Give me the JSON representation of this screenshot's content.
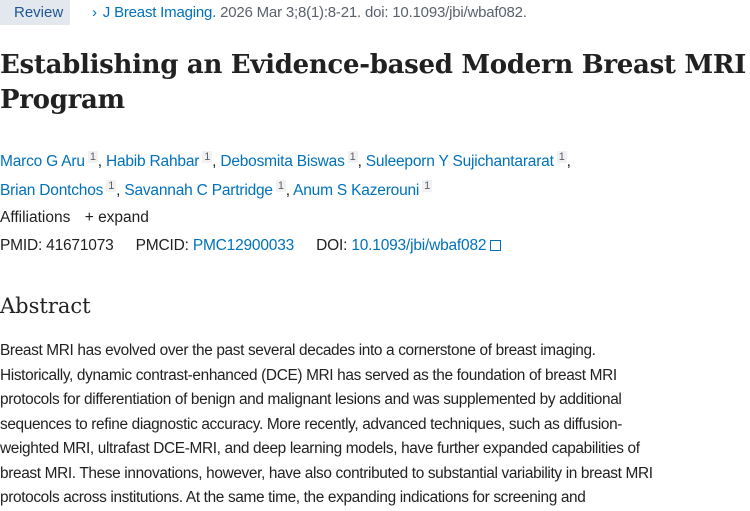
{
  "badge": "Review",
  "citation": {
    "journal": "J Breast Imaging.",
    "details": "2026 Mar 3;8(1):8-21. doi: 10.1093/jbi/wbaf082."
  },
  "title": "Establishing an Evidence-based Modern Breast MRI Program",
  "authors": [
    {
      "name": "Marco G Aru",
      "aff": "1"
    },
    {
      "name": "Habib Rahbar",
      "aff": "1"
    },
    {
      "name": "Debosmita Biswas",
      "aff": "1"
    },
    {
      "name": "Suleeporn Y Sujichantararat",
      "aff": "1"
    },
    {
      "name": "Brian Dontchos",
      "aff": "1"
    },
    {
      "name": "Savannah C Partridge",
      "aff": "1"
    },
    {
      "name": "Anum S Kazerouni",
      "aff": "1"
    }
  ],
  "affiliations": {
    "label": "Affiliations",
    "expand": "expand"
  },
  "ids": {
    "pmid_label": "PMID:",
    "pmid": "41671073",
    "pmcid_label": "PMCID:",
    "pmcid": "PMC12900033",
    "doi_label": "DOI:",
    "doi": "10.1093/jbi/wbaf082"
  },
  "abstract": {
    "heading": "Abstract",
    "lines": [
      "Breast MRI has evolved over the past several decades into a cornerstone of breast imaging.",
      "Historically, dynamic contrast-enhanced (DCE) MRI has served as the foundation of breast MRI",
      "protocols for differentiation of benign and malignant lesions and was supplemented by additional",
      "sequences to refine diagnostic accuracy. More recently, advanced techniques, such as diffusion-",
      "weighted MRI, ultrafast DCE-MRI, and deep learning models, have further expanded capabilities of",
      "breast MRI. These innovations, however, have also contributed to substantial variability in breast MRI",
      "protocols across institutions. At the same time, the expanding indications for screening and"
    ]
  }
}
